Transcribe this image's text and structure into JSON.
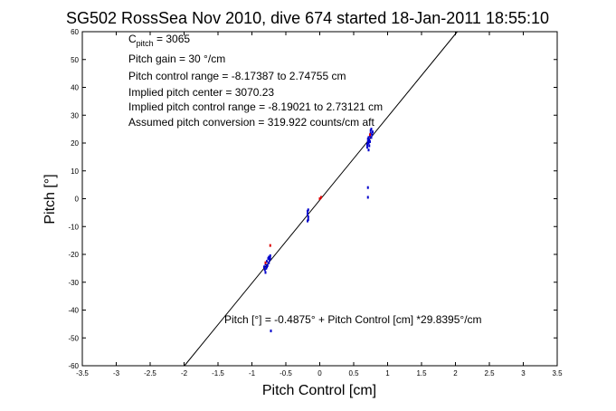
{
  "chart_data": {
    "type": "scatter",
    "title": "SG502 RossSea Nov 2010, dive 674 started 18-Jan-2011 18:55:10",
    "xlabel": "Pitch Control [cm]",
    "ylabel": "Pitch [°]",
    "xlim": [
      -3.5,
      3.5
    ],
    "ylim": [
      -60,
      60
    ],
    "xticks": [
      "-3.5",
      "-3",
      "-2.5",
      "-2",
      "-1.5",
      "-1",
      "-0.5",
      "0",
      "0.5",
      "1",
      "1.5",
      "2",
      "2.5",
      "3",
      "3.5"
    ],
    "yticks": [
      "-60",
      "-50",
      "-40",
      "-30",
      "-20",
      "-10",
      "0",
      "10",
      "20",
      "30",
      "40",
      "50",
      "60"
    ],
    "grid": false,
    "annotations": {
      "c_pitch_main": "C",
      "c_pitch_sub": "pitch",
      "c_pitch_value": " = 3065",
      "pitch_gain": "Pitch gain = 30 °/cm",
      "control_range": "Pitch control range = -8.17387 to 2.74755 cm",
      "implied_center": "Implied pitch center = 3070.23",
      "implied_range": "Implied pitch control range = -8.19021 to 2.73121 cm",
      "conversion": "Assumed pitch conversion = 319.922 counts/cm aft",
      "fit_equation": "Pitch [°] = -0.4875° + Pitch Control [cm] *29.8395°/cm"
    },
    "fit_line": {
      "intercept": -0.4875,
      "slope": 29.8395,
      "color": "#000000"
    },
    "series": [
      {
        "color": "#0000cc",
        "points": [
          [
            0.7,
            18.5
          ],
          [
            0.7,
            19.5
          ],
          [
            0.71,
            20.5
          ],
          [
            0.71,
            21.5
          ],
          [
            0.72,
            22.0
          ],
          [
            0.72,
            20.0
          ],
          [
            0.73,
            19.0
          ],
          [
            0.73,
            21.0
          ],
          [
            0.74,
            22.5
          ],
          [
            0.74,
            20.5
          ],
          [
            0.75,
            23.5
          ],
          [
            0.75,
            24.5
          ],
          [
            0.76,
            22.0
          ],
          [
            0.76,
            25.0
          ],
          [
            0.77,
            23.0
          ],
          [
            0.78,
            24.0
          ],
          [
            0.72,
            17.5
          ],
          [
            0.71,
            4.0
          ],
          [
            0.71,
            0.5
          ],
          [
            -0.18,
            -4.5
          ],
          [
            -0.18,
            -5.5
          ],
          [
            -0.17,
            -6.5
          ],
          [
            -0.17,
            -7.5
          ],
          [
            -0.18,
            -8.0
          ],
          [
            -0.17,
            -4.0
          ],
          [
            -0.82,
            -24.5
          ],
          [
            -0.81,
            -25.5
          ],
          [
            -0.8,
            -23.5
          ],
          [
            -0.79,
            -25.0
          ],
          [
            -0.78,
            -22.5
          ],
          [
            -0.77,
            -24.0
          ],
          [
            -0.76,
            -21.5
          ],
          [
            -0.75,
            -23.0
          ],
          [
            -0.74,
            -22.0
          ],
          [
            -0.73,
            -20.5
          ],
          [
            -0.73,
            -21.5
          ],
          [
            -0.8,
            -26.5
          ],
          [
            -0.78,
            -24.5
          ],
          [
            -0.75,
            -21.0
          ],
          [
            -0.72,
            -47.5
          ]
        ]
      },
      {
        "color": "#dd0000",
        "points": [
          [
            0.0,
            0.0
          ],
          [
            0.02,
            0.5
          ],
          [
            -0.73,
            -16.8
          ],
          [
            0.74,
            23.0
          ],
          [
            -0.8,
            -23.0
          ]
        ]
      }
    ]
  }
}
